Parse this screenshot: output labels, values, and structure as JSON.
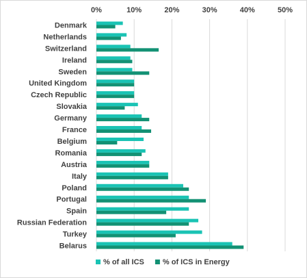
{
  "chart_data": {
    "type": "bar",
    "orientation": "horizontal",
    "categories": [
      "Denmark",
      "Netherlands",
      "Switzerland",
      "Ireland",
      "Sweden",
      "United Kingdom",
      "Czech Republic",
      "Slovakia",
      "Germany",
      "France",
      "Belgium",
      "Romania",
      "Austria",
      "Italy",
      "Poland",
      "Portugal",
      "Spain",
      "Russian Federation",
      "Turkey",
      "Belarus"
    ],
    "series": [
      {
        "name": "% of all ICS",
        "color": "#1ac3b4",
        "values": [
          7,
          8,
          9,
          9,
          9.5,
          10,
          10,
          11,
          12,
          12,
          12.5,
          13,
          14,
          19,
          23,
          24.5,
          24.5,
          27,
          28,
          36
        ]
      },
      {
        "name": "% of ICS in Energy",
        "color": "#139174",
        "values": [
          5,
          6.5,
          16.5,
          9.5,
          14,
          10,
          10,
          7.5,
          14,
          14.5,
          5.5,
          12,
          14,
          19,
          24.5,
          29,
          18.5,
          24.5,
          21,
          39
        ]
      }
    ],
    "x_ticks": [
      "0%",
      "10%",
      "20%",
      "30%",
      "40%",
      "50%"
    ],
    "xlim": [
      0,
      50
    ],
    "grid": true,
    "legend_position": "bottom"
  }
}
